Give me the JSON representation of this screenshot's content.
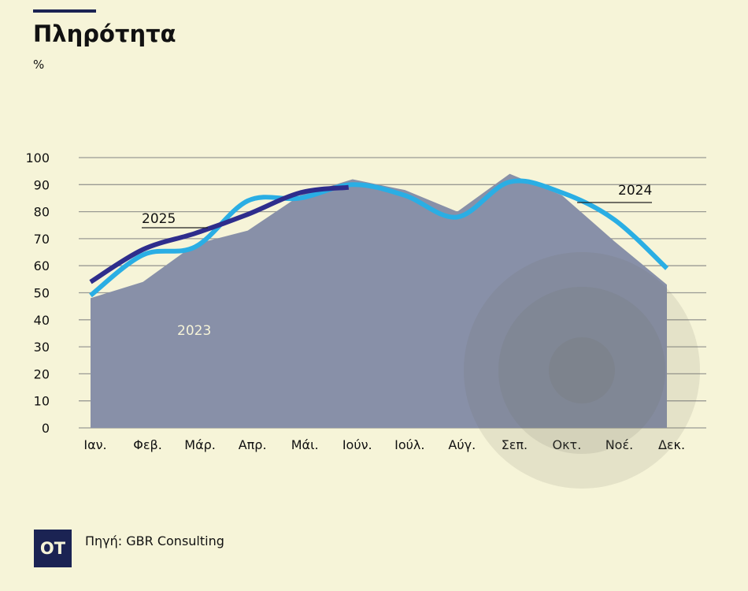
{
  "header": {
    "title": "Πληρότητα",
    "unit": "%"
  },
  "footer": {
    "logo": "OT",
    "source": "Πηγή: GBR Consulting"
  },
  "colors": {
    "background": "#f6f4d8",
    "area_2023": "#8890a8",
    "line_2024": "#2aaee4",
    "line_2025": "#2e2d8c",
    "brand": "#1b2353"
  },
  "chart_data": {
    "type": "line",
    "title": "Πληρότητα",
    "ylabel": "%",
    "xlabel": "",
    "ylim": [
      0,
      100
    ],
    "yticks": [
      0,
      10,
      20,
      30,
      40,
      50,
      60,
      70,
      80,
      90,
      100
    ],
    "grid": true,
    "categories": [
      "Ιαν.",
      "Φεβ.",
      "Μάρ.",
      "Απρ.",
      "Μάι.",
      "Ιούν.",
      "Ιούλ.",
      "Αύγ.",
      "Σεπ.",
      "Οκτ.",
      "Νοέ.",
      "Δεκ."
    ],
    "series": [
      {
        "name": "2023",
        "style": "area",
        "values": [
          48,
          54,
          68,
          73,
          86,
          92,
          88,
          80,
          94,
          86,
          69,
          53
        ]
      },
      {
        "name": "2024",
        "style": "line",
        "values": [
          49,
          64,
          67,
          84,
          85,
          90,
          86,
          78,
          91,
          87,
          77,
          59
        ]
      },
      {
        "name": "2025",
        "style": "line",
        "values": [
          54,
          66,
          72,
          79,
          87,
          89,
          null,
          null,
          null,
          null,
          null,
          null
        ]
      }
    ]
  }
}
